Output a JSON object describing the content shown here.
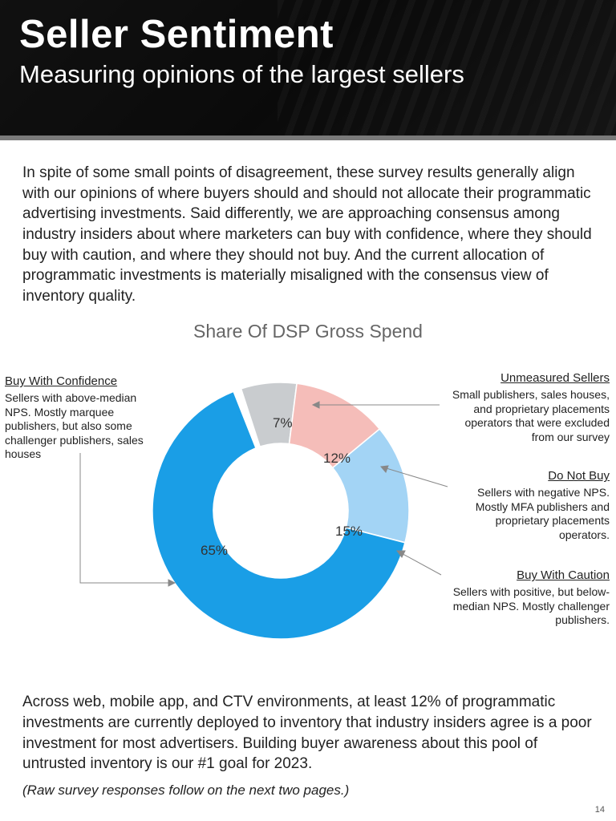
{
  "header": {
    "title": "Seller Sentiment",
    "subtitle": "Measuring opinions of the largest sellers"
  },
  "intro": "In spite of some small points of disagreement, these survey results generally align with our opinions of where buyers should and should not allocate their programmatic advertising investments. Said differently, we are approaching consensus among industry insiders about where marketers can buy with confidence, where they should buy with caution, and where they should not buy. And the current allocation of programmatic investments is materially misaligned with the consensus view of inventory quality.",
  "chart": {
    "type": "donut",
    "title": "Share Of DSP Gross Spend",
    "inner_radius_ratio": 0.52,
    "background_color": "#ffffff",
    "slices": [
      {
        "key": "unmeasured",
        "label_pct": "7%",
        "value": 7,
        "color": "#c9cccf"
      },
      {
        "key": "do_not_buy",
        "label_pct": "12%",
        "value": 12,
        "color": "#f5bdb9"
      },
      {
        "key": "buy_caution",
        "label_pct": "15%",
        "value": 15,
        "color": "#a3d4f5"
      },
      {
        "key": "buy_confidence",
        "label_pct": "65%",
        "value": 65,
        "color": "#1a9ee6"
      }
    ],
    "callouts": {
      "buy_confidence": {
        "head": "Buy With Confidence",
        "body": "Sellers with above-median NPS. Mostly marquee publishers, but also some challenger publishers, sales houses"
      },
      "unmeasured": {
        "head": "Unmeasured Sellers",
        "body": "Small publishers, sales houses, and proprietary placements operators that were excluded from our survey"
      },
      "do_not_buy": {
        "head": "Do Not Buy",
        "body": "Sellers with negative NPS. Mostly MFA publishers and proprietary placements operators."
      },
      "buy_caution": {
        "head": "Buy With Caution",
        "body": "Sellers with positive, but below-median NPS. Mostly challenger publishers."
      }
    }
  },
  "outro": "Across web, mobile app, and CTV environments, at least 12% of programmatic investments are currently deployed to inventory that industry insiders agree is a poor investment for most advertisers. Building buyer awareness about this pool of untrusted inventory is our #1 goal for 2023.",
  "raw_note": "(Raw survey responses follow on the next two pages.)",
  "page_number": "14"
}
